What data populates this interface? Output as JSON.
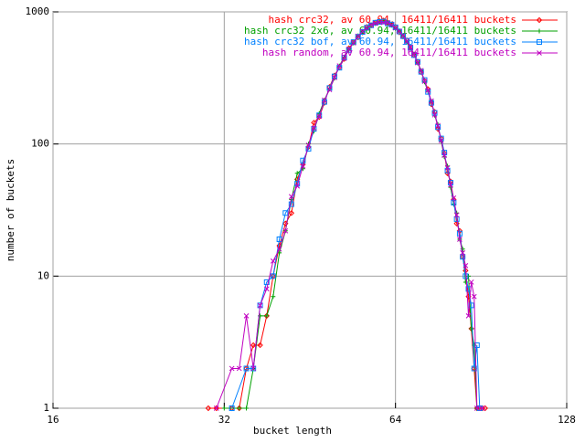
{
  "chart_data": {
    "type": "line",
    "xlabel": "bucket length",
    "ylabel": "number of buckets",
    "xlim": [
      16,
      128
    ],
    "xticks": [
      16,
      32,
      64,
      128
    ],
    "xlog": true,
    "ylim": [
      1,
      1000
    ],
    "yticks": [
      1,
      10,
      100,
      1000
    ],
    "ylog": true,
    "grid": true,
    "legend": "top-right",
    "series": [
      {
        "name": "hash crc32, av 60.94, 16411/16411 buckets",
        "color": "#ff0000",
        "marker": "diamond",
        "x": [
          30,
          31,
          33,
          34,
          35,
          36,
          37,
          38,
          39,
          40,
          41,
          42,
          43,
          44,
          45,
          46,
          47,
          48,
          49,
          50,
          51,
          52,
          53,
          54,
          55,
          56,
          57,
          58,
          59,
          60,
          61,
          62,
          63,
          64,
          65,
          66,
          67,
          68,
          69,
          70,
          71,
          72,
          73,
          74,
          75,
          76,
          77,
          78,
          79,
          80,
          81,
          82,
          83,
          84,
          85,
          86,
          87,
          88,
          89,
          91,
          92
        ],
        "values": [
          1,
          1,
          1,
          1,
          2,
          3,
          3,
          5,
          10,
          17,
          25,
          30,
          54,
          70,
          95,
          145,
          160,
          205,
          270,
          330,
          380,
          440,
          530,
          590,
          640,
          700,
          770,
          790,
          830,
          850,
          860,
          820,
          800,
          770,
          700,
          650,
          610,
          540,
          470,
          420,
          350,
          300,
          260,
          200,
          175,
          130,
          110,
          85,
          60,
          52,
          38,
          25,
          22,
          14,
          11,
          7,
          4,
          2,
          1,
          1,
          1
        ]
      },
      {
        "name": "hash crc32 2x6, av 60.94, 16411/16411 buckets",
        "color": "#00a000",
        "marker": "plus",
        "x": [
          32,
          34,
          35,
          36,
          37,
          38,
          39,
          40,
          41,
          42,
          43,
          44,
          45,
          46,
          47,
          48,
          49,
          50,
          51,
          52,
          53,
          54,
          55,
          56,
          57,
          58,
          59,
          60,
          61,
          62,
          63,
          64,
          65,
          66,
          67,
          68,
          69,
          70,
          71,
          72,
          73,
          74,
          75,
          76,
          77,
          78,
          79,
          80,
          81,
          82,
          83,
          84,
          85,
          86,
          87,
          88,
          89,
          90
        ],
        "values": [
          1,
          1,
          1,
          2,
          5,
          5,
          7,
          15,
          22,
          38,
          60,
          65,
          100,
          125,
          170,
          215,
          260,
          315,
          390,
          455,
          520,
          580,
          660,
          710,
          750,
          800,
          815,
          840,
          850,
          830,
          790,
          750,
          720,
          660,
          590,
          530,
          480,
          410,
          360,
          295,
          250,
          210,
          165,
          140,
          105,
          80,
          68,
          47,
          35,
          30,
          19,
          16,
          9,
          10,
          4,
          3,
          1,
          1
        ]
      },
      {
        "name": "hash crc32 bof, av 60.94, 16411/16411 buckets",
        "color": "#0080ff",
        "marker": "square",
        "x": [
          33,
          35,
          36,
          37,
          38,
          39,
          40,
          41,
          42,
          43,
          44,
          45,
          46,
          47,
          48,
          49,
          50,
          51,
          52,
          53,
          54,
          55,
          56,
          57,
          58,
          59,
          60,
          61,
          62,
          63,
          64,
          65,
          66,
          67,
          68,
          69,
          70,
          71,
          72,
          73,
          74,
          75,
          76,
          77,
          78,
          79,
          80,
          81,
          82,
          83,
          84,
          85,
          86,
          87,
          88,
          89,
          90
        ],
        "values": [
          1,
          2,
          2,
          6,
          9,
          10,
          19,
          30,
          35,
          50,
          75,
          92,
          130,
          165,
          208,
          265,
          325,
          378,
          450,
          515,
          590,
          648,
          705,
          760,
          790,
          828,
          840,
          845,
          818,
          802,
          765,
          710,
          655,
          605,
          535,
          470,
          418,
          352,
          305,
          248,
          205,
          172,
          134,
          110,
          86,
          63,
          51,
          36,
          27,
          21,
          14,
          10,
          8,
          6,
          2,
          3,
          1
        ]
      },
      {
        "name": "hash random, av 60.94, 16411/16411 buckets",
        "color": "#c000c0",
        "marker": "cross",
        "x": [
          31,
          33,
          34,
          35,
          36,
          37,
          38,
          39,
          40,
          41,
          42,
          43,
          44,
          45,
          46,
          47,
          48,
          49,
          50,
          51,
          52,
          53,
          54,
          55,
          56,
          57,
          58,
          59,
          60,
          61,
          62,
          63,
          64,
          65,
          66,
          67,
          68,
          69,
          70,
          71,
          72,
          73,
          74,
          75,
          76,
          77,
          78,
          79,
          80,
          81,
          82,
          83,
          84,
          85,
          86,
          87,
          88,
          89,
          91
        ],
        "values": [
          1,
          2,
          2,
          5,
          2,
          6,
          8,
          13,
          16,
          22,
          40,
          48,
          68,
          98,
          132,
          162,
          215,
          258,
          318,
          390,
          445,
          522,
          582,
          655,
          712,
          752,
          800,
          820,
          835,
          830,
          828,
          795,
          755,
          715,
          662,
          598,
          542,
          478,
          412,
          360,
          298,
          255,
          212,
          166,
          138,
          106,
          82,
          66,
          49,
          39,
          29,
          19,
          15,
          12,
          5,
          9,
          7,
          1,
          1
        ]
      }
    ]
  }
}
